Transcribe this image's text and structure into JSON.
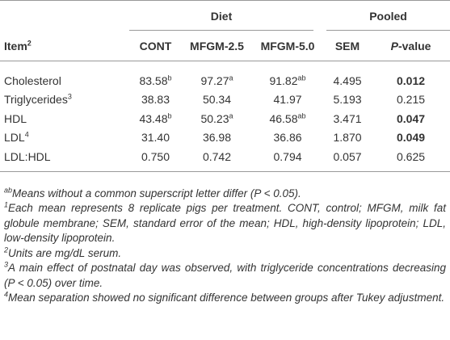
{
  "table": {
    "group_headers": [
      "Diet",
      "Pooled"
    ],
    "columns": [
      {
        "text": "Item",
        "sup": "2"
      },
      "CONT",
      "MFGM-2.5",
      "MFGM-5.0",
      "SEM",
      {
        "italic": "P",
        "text": "-value"
      }
    ],
    "rows": [
      [
        {
          "text": "Cholesterol"
        },
        {
          "text": "83.58",
          "sup": "b"
        },
        {
          "text": "97.27",
          "sup": "a"
        },
        {
          "text": "91.82",
          "sup": "ab"
        },
        "4.495",
        {
          "text": "0.012",
          "bold": true
        }
      ],
      [
        {
          "text": "Triglycerides",
          "sup": "3"
        },
        "38.83",
        "50.34",
        "41.97",
        "5.193",
        "0.215"
      ],
      [
        {
          "text": "HDL"
        },
        {
          "text": "43.48",
          "sup": "b"
        },
        {
          "text": "50.23",
          "sup": "a"
        },
        {
          "text": "46.58",
          "sup": "ab"
        },
        "3.471",
        {
          "text": "0.047",
          "bold": true
        }
      ],
      [
        {
          "text": "LDL",
          "sup": "4"
        },
        "31.40",
        "36.98",
        "36.86",
        "1.870",
        {
          "text": "0.049",
          "bold": true
        }
      ],
      [
        {
          "text": "LDL:HDL"
        },
        "0.750",
        "0.742",
        "0.794",
        "0.057",
        "0.625"
      ]
    ]
  },
  "footnotes": [
    {
      "mark": "ab",
      "text": "Means without a common superscript letter differ (P < 0.05)."
    },
    {
      "mark": "1",
      "text": "Each mean represents 8 replicate pigs per treatment. CONT, control; MFGM, milk fat globule membrane; SEM, standard error of the mean; HDL, high-density lipoprotein; LDL, low-density lipoprotein."
    },
    {
      "mark": "2",
      "text": "Units are mg/dL serum."
    },
    {
      "mark": "3",
      "text": "A main effect of postnatal day was observed, with triglyceride concentrations decreasing (P < 0.05) over time."
    },
    {
      "mark": "4",
      "text": "Mean separation showed no significant difference between groups after Tukey adjustment."
    }
  ]
}
